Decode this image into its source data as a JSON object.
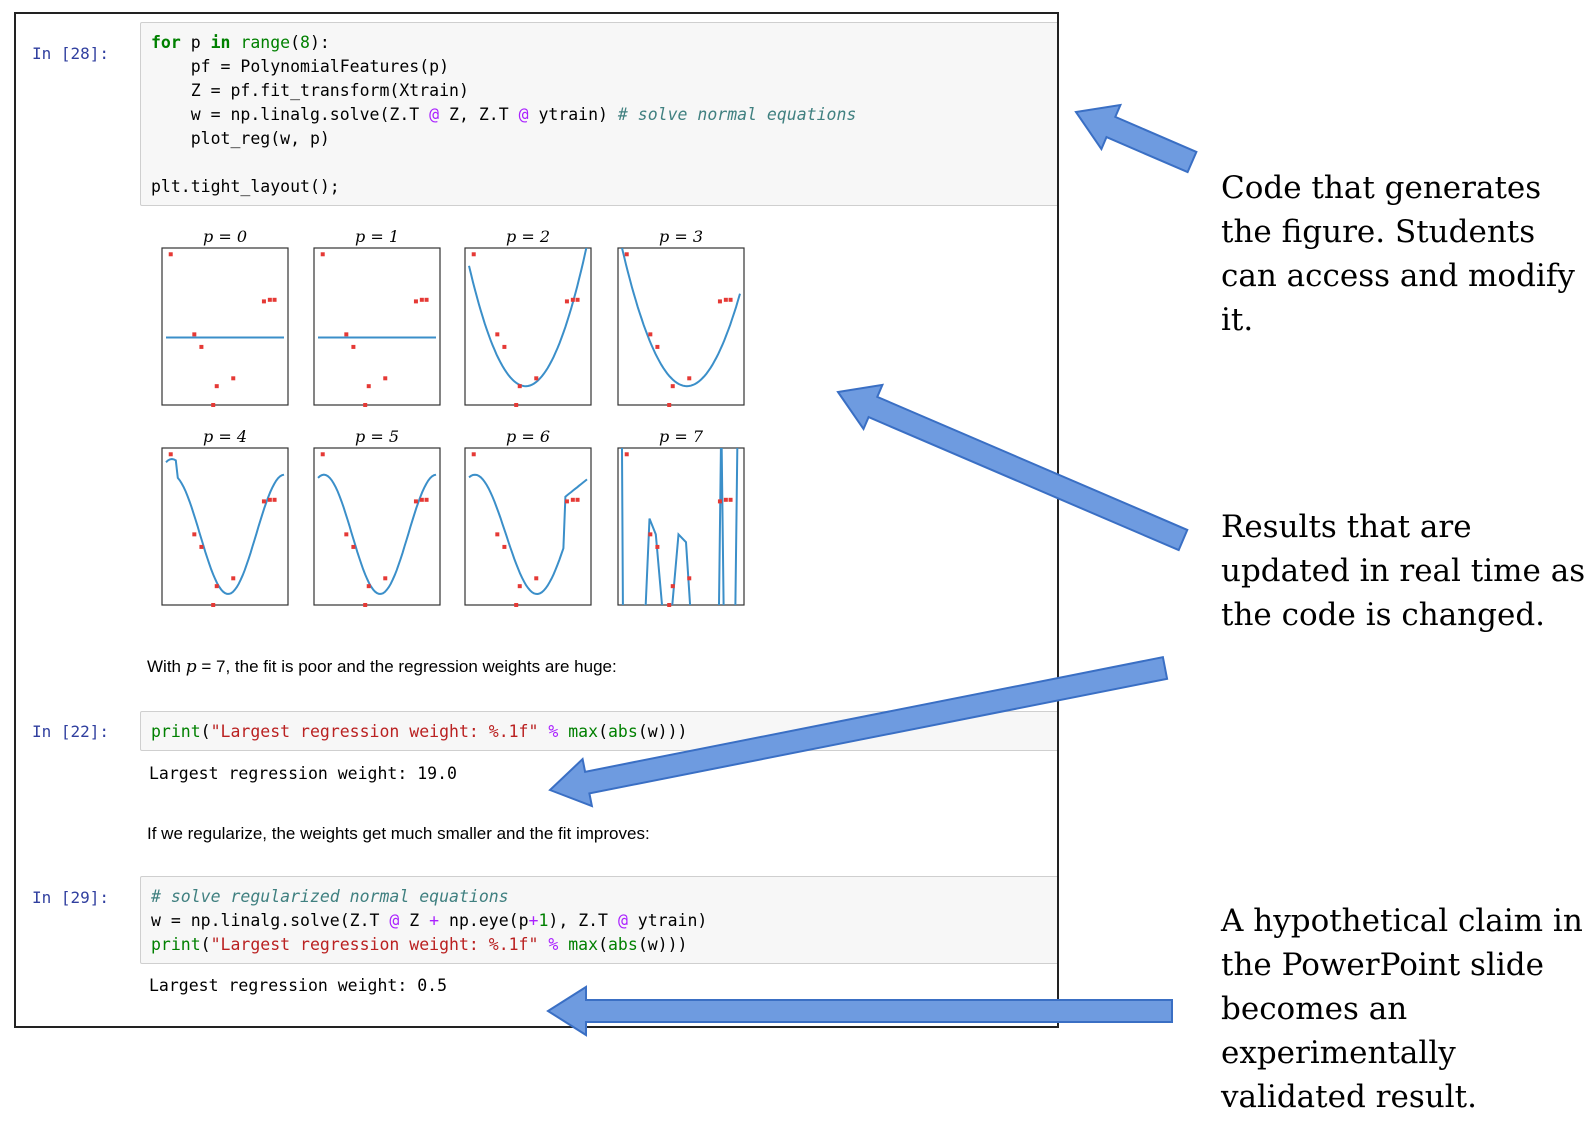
{
  "cells": [
    {
      "prompt": "In [28]:",
      "code_lines": [
        "for p in range(8):",
        "    pf = PolynomialFeatures(p)",
        "    Z = pf.fit_transform(Xtrain)",
        "    w = np.linalg.solve(Z.T @ Z, Z.T @ ytrain) # solve normal equations",
        "    plot_reg(w, p)",
        "",
        "plt.tight_layout();"
      ]
    },
    {
      "prompt": "In [22]:",
      "code_lines": [
        "print(\"Largest regression weight: %.1f\" % max(abs(w)))"
      ],
      "output": "Largest regression weight: 19.0"
    },
    {
      "prompt": "In [29]:",
      "code_lines": [
        "# solve regularized normal equations",
        "w = np.linalg.solve(Z.T @ Z + np.eye(p+1), Z.T @ ytrain)",
        "print(\"Largest regression weight: %.1f\" % max(abs(w)))"
      ],
      "output": "Largest regression weight: 0.5"
    }
  ],
  "markdown": {
    "text1_prefix": "With ",
    "text1_var": "p",
    "text1_mid": " = 7",
    "text1_suffix": ", the fit is poor and the regression weights are huge:",
    "text2": "If we regularize, the weights get much smaller and the fit improves:"
  },
  "plot_titles": [
    "p = 0",
    "p = 1",
    "p = 2",
    "p = 3",
    "p = 4",
    "p = 5",
    "p = 6",
    "p = 7"
  ],
  "annotations": {
    "code": "Code that generates the figure. Students can access and modify it.",
    "results": "Results that are updated in real time as the code is changed.",
    "claim": "A hypothetical claim in the PowerPoint slide becomes an experimentally validated result."
  },
  "colors": {
    "arrow_fill": "#6e9be0",
    "arrow_stroke": "#3a6fc4",
    "curve": "#3b8fc9",
    "points": "#e53935"
  }
}
